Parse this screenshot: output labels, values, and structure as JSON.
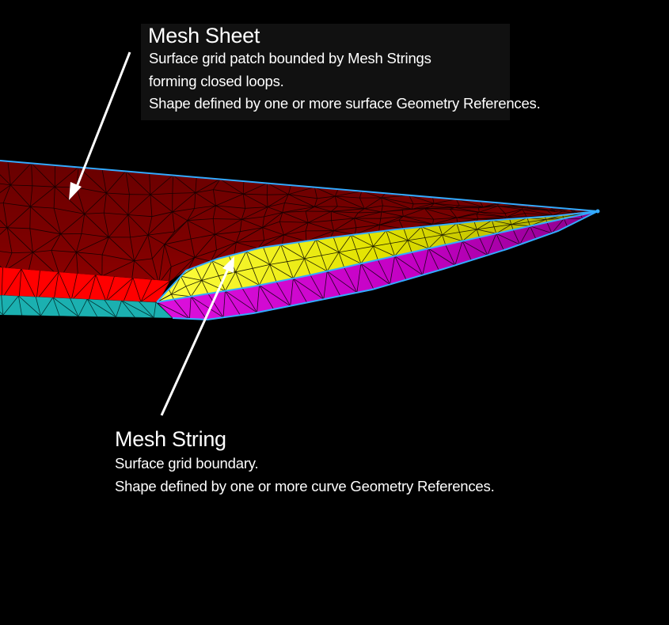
{
  "callouts": {
    "mesh_sheet": {
      "title": "Mesh Sheet",
      "lines": [
        "Surface grid patch bounded by Mesh Strings",
        "forming closed loops.",
        "Shape defined by one or more surface Geometry References."
      ]
    },
    "mesh_string": {
      "title": "Mesh String",
      "lines": [
        "Surface grid boundary.",
        "Shape defined by one or more curve Geometry References."
      ]
    }
  },
  "colors": {
    "background": "#000000",
    "sheet_dark_red": "#7a0000",
    "sheet_bright_red": "#ff0000",
    "cyan_band": "#1bb0b0",
    "yellow_band": "#e0e000",
    "magenta_band": "#cc00cc",
    "boundary_blue": "#33aaff",
    "arrow": "#ffffff",
    "text": "#ffffff",
    "label_box": "#111111"
  }
}
